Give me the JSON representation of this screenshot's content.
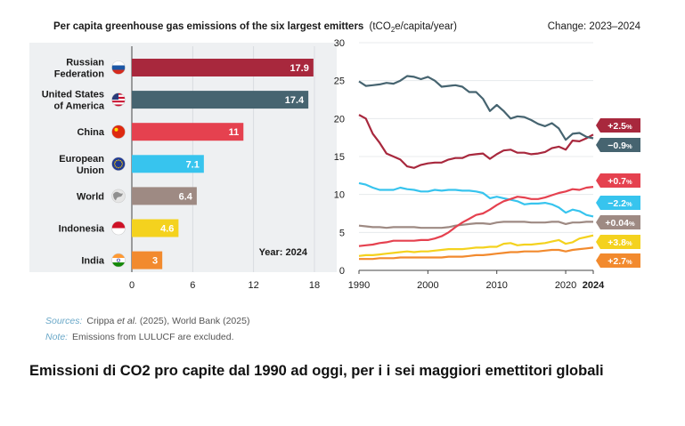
{
  "caption": "Emissioni di CO2 pro capite dal 1990 ad oggi, per i i sei maggiori emettitori globali",
  "sources": {
    "label": "Sources:",
    "authors": "Crippa",
    "etal": "et al.",
    "rest": "(2025), World Bank (2025)"
  },
  "note": {
    "label": "Note:",
    "text": "Emissions from LULUCF are excluded."
  },
  "colors": {
    "russia": "#A8283D",
    "usa": "#466470",
    "china": "#E5414F",
    "eu": "#37C4EE",
    "world": "#9E8A83",
    "indonesia": "#F4D21E",
    "india": "#F28A2E"
  },
  "chart_data": [
    {
      "type": "bar",
      "orientation": "horizontal",
      "title": "Per capita greenhouse gas emissions of the six largest emitters",
      "title_unit_pre": "(tCO",
      "title_unit_sub": "2",
      "title_unit_post": "e/capita/year)",
      "categories": [
        {
          "key": "russia",
          "label": [
            "Russian",
            "Federation"
          ],
          "flag": "russia-flag-icon"
        },
        {
          "key": "usa",
          "label": [
            "United States",
            "of America"
          ],
          "flag": "usa-flag-icon"
        },
        {
          "key": "china",
          "label": [
            "China"
          ],
          "flag": "china-flag-icon"
        },
        {
          "key": "eu",
          "label": [
            "European",
            "Union"
          ],
          "flag": "eu-flag-icon"
        },
        {
          "key": "world",
          "label": [
            "World"
          ],
          "flag": "globe-icon"
        },
        {
          "key": "indonesia",
          "label": [
            "Indonesia"
          ],
          "flag": "indonesia-flag-icon"
        },
        {
          "key": "india",
          "label": [
            "India"
          ],
          "flag": "india-flag-icon"
        }
      ],
      "values": [
        17.9,
        17.4,
        11,
        7.1,
        6.4,
        4.6,
        3
      ],
      "value_labels": [
        "17.9",
        "17.4",
        "11",
        "7.1",
        "6.4",
        "4.6",
        "3"
      ],
      "xlim": [
        0,
        18
      ],
      "xticks": [
        "0",
        "6",
        "12",
        "18"
      ],
      "year_label": "Year: 2024"
    },
    {
      "type": "line",
      "change_label": "Change: 2023–2024",
      "x": [
        1990,
        1991,
        1992,
        1993,
        1994,
        1995,
        1996,
        1997,
        1998,
        1999,
        2000,
        2001,
        2002,
        2003,
        2004,
        2005,
        2006,
        2007,
        2008,
        2009,
        2010,
        2011,
        2012,
        2013,
        2014,
        2015,
        2016,
        2017,
        2018,
        2019,
        2020,
        2021,
        2022,
        2023,
        2024
      ],
      "xlim": [
        1990,
        2024
      ],
      "ylim": [
        0,
        30
      ],
      "xticks": [
        "1990",
        "2000",
        "2010",
        "2020",
        "2024"
      ],
      "yticks": [
        "0",
        "5",
        "10",
        "15",
        "20",
        "25",
        "30"
      ],
      "series": [
        {
          "key": "usa",
          "name": "United States of America",
          "change": "−0.9",
          "values": [
            24.9,
            24.3,
            24.4,
            24.5,
            24.7,
            24.6,
            25.0,
            25.6,
            25.5,
            25.2,
            25.5,
            25.0,
            24.2,
            24.3,
            24.4,
            24.2,
            23.5,
            23.5,
            22.6,
            21.0,
            21.8,
            21.0,
            20.0,
            20.3,
            20.2,
            19.8,
            19.3,
            19.0,
            19.4,
            18.7,
            17.2,
            18.0,
            18.1,
            17.6,
            17.4
          ]
        },
        {
          "key": "russia",
          "name": "Russian Federation",
          "change": "+2.5",
          "values": [
            20.5,
            20.0,
            18.0,
            16.8,
            15.4,
            15.0,
            14.6,
            13.7,
            13.5,
            13.9,
            14.1,
            14.2,
            14.2,
            14.6,
            14.8,
            14.8,
            15.2,
            15.3,
            15.4,
            14.7,
            15.3,
            15.8,
            15.9,
            15.5,
            15.5,
            15.3,
            15.4,
            15.6,
            16.1,
            16.3,
            15.9,
            17.1,
            17.0,
            17.4,
            17.9
          ]
        },
        {
          "key": "china",
          "name": "China",
          "change": "+0.7",
          "values": [
            3.2,
            3.3,
            3.4,
            3.6,
            3.7,
            3.9,
            3.9,
            3.9,
            3.9,
            4.0,
            4.0,
            4.2,
            4.5,
            5.0,
            5.7,
            6.3,
            6.8,
            7.3,
            7.5,
            8.0,
            8.6,
            9.1,
            9.4,
            9.7,
            9.6,
            9.4,
            9.4,
            9.6,
            9.9,
            10.2,
            10.4,
            10.7,
            10.6,
            10.9,
            11.0
          ]
        },
        {
          "key": "eu",
          "name": "European Union",
          "change": "−2.2",
          "values": [
            11.5,
            11.3,
            10.9,
            10.6,
            10.6,
            10.6,
            10.9,
            10.7,
            10.6,
            10.4,
            10.4,
            10.6,
            10.5,
            10.6,
            10.6,
            10.5,
            10.5,
            10.4,
            10.2,
            9.5,
            9.7,
            9.5,
            9.3,
            9.1,
            8.7,
            8.8,
            8.8,
            8.9,
            8.7,
            8.3,
            7.6,
            8.0,
            7.8,
            7.3,
            7.1
          ]
        },
        {
          "key": "world",
          "name": "World",
          "change": "+0.04",
          "values": [
            5.9,
            5.8,
            5.7,
            5.7,
            5.6,
            5.7,
            5.7,
            5.7,
            5.7,
            5.6,
            5.6,
            5.6,
            5.6,
            5.7,
            5.9,
            6.0,
            6.1,
            6.2,
            6.2,
            6.1,
            6.3,
            6.4,
            6.4,
            6.4,
            6.4,
            6.3,
            6.3,
            6.3,
            6.4,
            6.4,
            6.1,
            6.3,
            6.3,
            6.4,
            6.4
          ]
        },
        {
          "key": "indonesia",
          "name": "Indonesia",
          "change": "+3.8",
          "values": [
            1.9,
            2.0,
            2.0,
            2.1,
            2.2,
            2.3,
            2.4,
            2.5,
            2.4,
            2.5,
            2.5,
            2.6,
            2.7,
            2.8,
            2.8,
            2.8,
            2.9,
            3.0,
            3.0,
            3.1,
            3.1,
            3.5,
            3.6,
            3.3,
            3.4,
            3.4,
            3.5,
            3.6,
            3.8,
            4.0,
            3.5,
            3.7,
            4.2,
            4.4,
            4.6
          ]
        },
        {
          "key": "india",
          "name": "India",
          "change": "+2.7",
          "values": [
            1.5,
            1.5,
            1.5,
            1.6,
            1.6,
            1.6,
            1.7,
            1.7,
            1.7,
            1.7,
            1.7,
            1.7,
            1.7,
            1.8,
            1.8,
            1.8,
            1.9,
            2.0,
            2.0,
            2.1,
            2.2,
            2.3,
            2.4,
            2.4,
            2.5,
            2.5,
            2.5,
            2.6,
            2.7,
            2.7,
            2.5,
            2.7,
            2.8,
            2.9,
            3.0
          ]
        }
      ],
      "change_order": [
        "russia",
        "usa",
        "china",
        "eu",
        "world",
        "indonesia",
        "india"
      ]
    }
  ]
}
